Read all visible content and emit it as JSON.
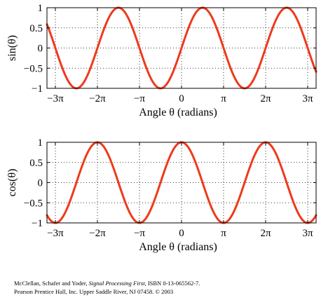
{
  "chart_data": [
    {
      "type": "line",
      "function": "sin",
      "ylabel": "sin(θ)",
      "xlabel": "Angle θ (radians)",
      "xlim_pi": [
        -3.2,
        3.2
      ],
      "ylim": [
        -1,
        1
      ],
      "x_ticks": [
        {
          "value_pi": -3,
          "label": "−3π"
        },
        {
          "value_pi": -2,
          "label": "−2π"
        },
        {
          "value_pi": -1,
          "label": "−π"
        },
        {
          "value_pi": 0,
          "label": "0"
        },
        {
          "value_pi": 1,
          "label": "π"
        },
        {
          "value_pi": 2,
          "label": "2π"
        },
        {
          "value_pi": 3,
          "label": "3π"
        }
      ],
      "y_ticks": [
        {
          "value": 1,
          "label": "1"
        },
        {
          "value": 0.5,
          "label": "0.5"
        },
        {
          "value": 0,
          "label": "0"
        },
        {
          "value": -0.5,
          "label": "−0.5"
        },
        {
          "value": -1,
          "label": "−1"
        }
      ],
      "grid": true,
      "color": "#ee3a1c"
    },
    {
      "type": "line",
      "function": "cos",
      "ylabel": "cos(θ)",
      "xlabel": "Angle θ (radians)",
      "xlim_pi": [
        -3.2,
        3.2
      ],
      "ylim": [
        -1,
        1
      ],
      "x_ticks": [
        {
          "value_pi": -3,
          "label": "−3π"
        },
        {
          "value_pi": -2,
          "label": "−2π"
        },
        {
          "value_pi": -1,
          "label": "−π"
        },
        {
          "value_pi": 0,
          "label": "0"
        },
        {
          "value_pi": 1,
          "label": "π"
        },
        {
          "value_pi": 2,
          "label": "2π"
        },
        {
          "value_pi": 3,
          "label": "3π"
        }
      ],
      "y_ticks": [
        {
          "value": 1,
          "label": "1"
        },
        {
          "value": 0.5,
          "label": "0.5"
        },
        {
          "value": 0,
          "label": "0"
        },
        {
          "value": -0.5,
          "label": "−0.5"
        },
        {
          "value": -1,
          "label": "−1"
        }
      ],
      "grid": true,
      "color": "#ee3a1c"
    }
  ],
  "caption": {
    "line1_prefix": "McClellan, Schafer and Yoder, ",
    "line1_title": "Signal Processing First",
    "line1_suffix": ", ISBN 0-13-065562-7.",
    "line2": "Pearson Prentice Hall, Inc. Upper Saddle River, NJ 07458. © 2003"
  }
}
